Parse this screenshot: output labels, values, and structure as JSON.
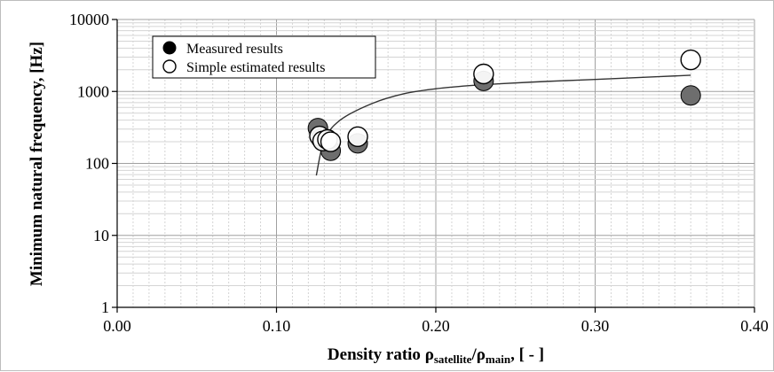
{
  "chart_data": {
    "type": "scatter",
    "xlabel": {
      "prefix": "Density ratio ",
      "rho1": "ρ",
      "sub1": "satellite",
      "slash": "/",
      "rho2": "ρ",
      "sub2": "main",
      "suffix": ", [ - ]"
    },
    "ylabel": "Minimum natural frequency, [Hz]",
    "xlim": [
      0.0,
      0.4
    ],
    "ylim": [
      1,
      10000
    ],
    "yscale": "log",
    "grid": true,
    "x_ticks": [
      0.0,
      0.1,
      0.2,
      0.3,
      0.4
    ],
    "x_tick_labels": [
      "0.00",
      "0.10",
      "0.20",
      "0.30",
      "0.40"
    ],
    "y_ticks": [
      1,
      10,
      100,
      1000,
      10000
    ],
    "y_tick_labels": [
      "1",
      "10",
      "100",
      "1000",
      "10000"
    ],
    "legend_position": "top-left",
    "series": [
      {
        "name": "Measured results",
        "marker": "filled-circle",
        "color": "#6e6e6e",
        "points": [
          {
            "x": 0.126,
            "y": 310
          },
          {
            "x": 0.128,
            "y": 220
          },
          {
            "x": 0.134,
            "y": 150
          },
          {
            "x": 0.151,
            "y": 190
          },
          {
            "x": 0.23,
            "y": 1400
          },
          {
            "x": 0.36,
            "y": 880
          }
        ]
      },
      {
        "name": "Simple estimated results",
        "marker": "open-circle",
        "color": "#ffffff",
        "points": [
          {
            "x": 0.127,
            "y": 240
          },
          {
            "x": 0.129,
            "y": 205
          },
          {
            "x": 0.132,
            "y": 215
          },
          {
            "x": 0.134,
            "y": 200
          },
          {
            "x": 0.151,
            "y": 235
          },
          {
            "x": 0.23,
            "y": 1750
          },
          {
            "x": 0.36,
            "y": 2750
          }
        ]
      }
    ],
    "trend_line": {
      "points": [
        {
          "x": 0.125,
          "y": 68
        },
        {
          "x": 0.13,
          "y": 210
        },
        {
          "x": 0.14,
          "y": 400
        },
        {
          "x": 0.16,
          "y": 680
        },
        {
          "x": 0.18,
          "y": 930
        },
        {
          "x": 0.2,
          "y": 1090
        },
        {
          "x": 0.22,
          "y": 1200
        },
        {
          "x": 0.24,
          "y": 1280
        },
        {
          "x": 0.27,
          "y": 1380
        },
        {
          "x": 0.3,
          "y": 1470
        },
        {
          "x": 0.33,
          "y": 1570
        },
        {
          "x": 0.36,
          "y": 1680
        }
      ]
    }
  }
}
